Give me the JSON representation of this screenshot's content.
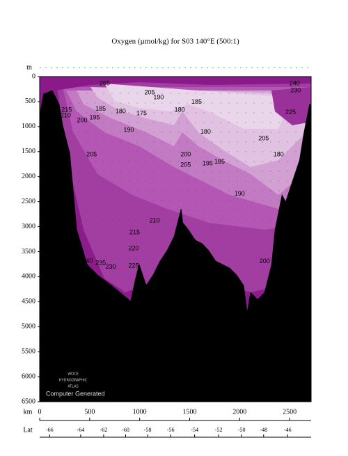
{
  "chart_data": {
    "type": "section",
    "title": "Oxygen (µmol/kg) for S03 140°E (500:1)",
    "y_label": "m",
    "x_label": "km",
    "lat_label": "Lat",
    "xlim": [
      0,
      2715
    ],
    "ylim": [
      0,
      6500
    ],
    "xticks": [
      0,
      500,
      1000,
      1500,
      2000,
      2500
    ],
    "yticks": [
      0,
      500,
      1000,
      1500,
      2000,
      2500,
      3000,
      3500,
      4000,
      4500,
      5000,
      5500,
      6000,
      6500
    ],
    "lat_ticks": [
      {
        "value": 100,
        "label": "-66"
      },
      {
        "value": 410,
        "label": "-64"
      },
      {
        "value": 640,
        "label": "-62"
      },
      {
        "value": 860,
        "label": "-60"
      },
      {
        "value": 1080,
        "label": "-58"
      },
      {
        "value": 1310,
        "label": "-56"
      },
      {
        "value": 1550,
        "label": "-54"
      },
      {
        "value": 1790,
        "label": "-52"
      },
      {
        "value": 2020,
        "label": "-50"
      },
      {
        "value": 2240,
        "label": "-48"
      },
      {
        "value": 2480,
        "label": "-46"
      }
    ],
    "bottom": {
      "color": "#000000",
      "x": [
        0,
        40,
        125,
        195,
        230,
        300,
        370,
        475,
        580,
        720,
        890,
        910,
        960,
        995,
        1065,
        1135,
        1205,
        1275,
        1345,
        1415,
        1430,
        1485,
        1555,
        1625,
        1690,
        1760,
        1830,
        1900,
        1970,
        2040,
        2075,
        2110,
        2180,
        2250,
        2320,
        2355,
        2425,
        2460,
        2530,
        2600,
        2645,
        2700,
        2715
      ],
      "y": [
        770,
        350,
        280,
        560,
        980,
        1530,
        3060,
        3760,
        3970,
        4180,
        4460,
        4500,
        4040,
        3760,
        4180,
        3970,
        3690,
        3480,
        3200,
        2650,
        2920,
        3060,
        3270,
        3340,
        3480,
        3690,
        3760,
        3830,
        3970,
        4180,
        4730,
        4320,
        4460,
        4320,
        3760,
        3060,
        2370,
        2510,
        2090,
        1670,
        1120,
        560,
        560
      ]
    },
    "contour_labels": [
      {
        "text": "265",
        "x": 650,
        "y": 140
      },
      {
        "text": "205",
        "x": 1100,
        "y": 320
      },
      {
        "text": "190",
        "x": 1190,
        "y": 420
      },
      {
        "text": "185",
        "x": 610,
        "y": 650
      },
      {
        "text": "180",
        "x": 810,
        "y": 700
      },
      {
        "text": "175",
        "x": 1020,
        "y": 740
      },
      {
        "text": "180",
        "x": 1400,
        "y": 670
      },
      {
        "text": "185",
        "x": 1570,
        "y": 510
      },
      {
        "text": "200",
        "x": 425,
        "y": 880
      },
      {
        "text": "195",
        "x": 550,
        "y": 820
      },
      {
        "text": "190",
        "x": 890,
        "y": 1070
      },
      {
        "text": "180",
        "x": 1660,
        "y": 1110
      },
      {
        "text": "205",
        "x": 2240,
        "y": 1240
      },
      {
        "text": "180",
        "x": 2390,
        "y": 1560
      },
      {
        "text": "205",
        "x": 520,
        "y": 1560
      },
      {
        "text": "200",
        "x": 1460,
        "y": 1560
      },
      {
        "text": "205",
        "x": 1460,
        "y": 1770
      },
      {
        "text": "195",
        "x": 1680,
        "y": 1740
      },
      {
        "text": "185",
        "x": 1800,
        "y": 1710
      },
      {
        "text": "190",
        "x": 2000,
        "y": 2350
      },
      {
        "text": "210",
        "x": 1150,
        "y": 2880
      },
      {
        "text": "215",
        "x": 950,
        "y": 3120
      },
      {
        "text": "220",
        "x": 940,
        "y": 3440
      },
      {
        "text": "225",
        "x": 940,
        "y": 3790
      },
      {
        "text": "235",
        "x": 610,
        "y": 3730
      },
      {
        "text": "230",
        "x": 710,
        "y": 3810
      },
      {
        "text": "240",
        "x": 480,
        "y": 3690
      },
      {
        "text": "200",
        "x": 2250,
        "y": 3700
      },
      {
        "text": "240",
        "x": 2550,
        "y": 140
      },
      {
        "text": "230",
        "x": 2560,
        "y": 280
      },
      {
        "text": "225",
        "x": 2510,
        "y": 720
      },
      {
        "text": "215",
        "x": 270,
        "y": 670
      },
      {
        "text": "210",
        "x": 260,
        "y": 780
      }
    ],
    "logo": [
      "WOCE",
      "HYDROGRAPHIC",
      "ATLAS"
    ],
    "footer": "Computer Generated"
  }
}
